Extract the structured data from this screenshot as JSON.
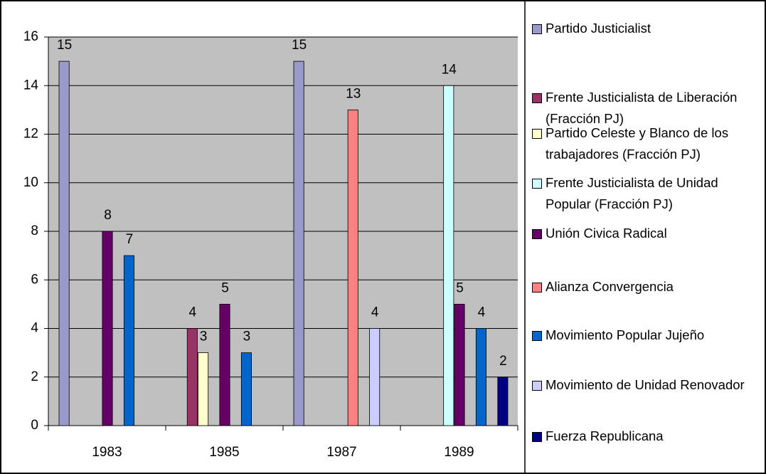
{
  "chart_data": {
    "type": "bar",
    "categories": [
      "1983",
      "1985",
      "1987",
      "1989"
    ],
    "series": [
      {
        "name": "Partido Justicialist",
        "color": "#9999cc",
        "values": [
          15,
          null,
          15,
          null
        ]
      },
      {
        "name": "Frente Justicialista de Liberación (Fracción PJ)",
        "color": "#993366",
        "values": [
          null,
          4,
          null,
          null
        ]
      },
      {
        "name": "Partido Celeste y Blanco de los trabajadores  (Fracción PJ)",
        "color": "#ffffcc",
        "values": [
          null,
          3,
          null,
          null
        ]
      },
      {
        "name": "Frente Justicialista de Unidad Popular (Fracción PJ)",
        "color": "#ccffff",
        "values": [
          null,
          null,
          null,
          14
        ]
      },
      {
        "name": "Unión Civica Radical",
        "color": "#660066",
        "values": [
          8,
          5,
          null,
          5
        ]
      },
      {
        "name": "Alianza Convergencia",
        "color": "#ff8080",
        "values": [
          null,
          null,
          13,
          null
        ]
      },
      {
        "name": "Movimiento Popular Jujeño",
        "color": "#0066cc",
        "values": [
          7,
          3,
          null,
          4
        ]
      },
      {
        "name": "Movimiento de Unidad Renovador",
        "color": "#ccccff",
        "values": [
          null,
          null,
          4,
          null
        ]
      },
      {
        "name": "Fuerza Republicana",
        "color": "#000080",
        "values": [
          null,
          null,
          null,
          2
        ]
      }
    ],
    "ylim": [
      0,
      16
    ],
    "yticks": [
      0,
      2,
      4,
      6,
      8,
      10,
      12,
      14,
      16
    ],
    "grid": true,
    "legend": "right"
  }
}
